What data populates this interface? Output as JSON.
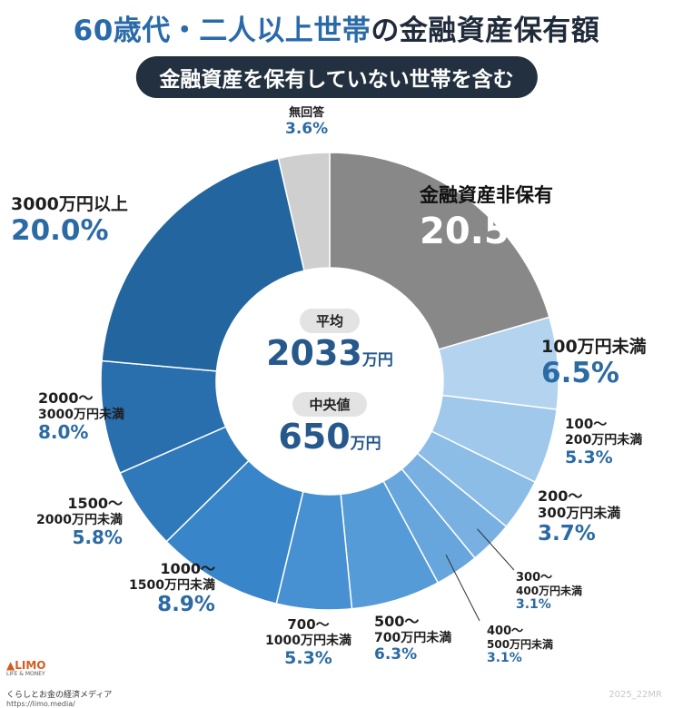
{
  "header": {
    "title_part1": "60歳代・二人以上世帯",
    "title_part2": "の金融資産保有額",
    "subtitle": "金融資産を保有していない世帯を含む"
  },
  "center": {
    "mean_label": "平均",
    "mean_value": "2033",
    "mean_unit": "万円",
    "median_label": "中央値",
    "median_value": "650",
    "median_unit": "万円"
  },
  "chart_data": {
    "type": "pie",
    "donut": true,
    "unit": "%",
    "slices": [
      {
        "label": "金融資産非保有",
        "value": 20.5,
        "display": "20.5%",
        "color": "#888888"
      },
      {
        "label": "100万円未満",
        "value": 6.5,
        "display": "6.5%",
        "color": "#b3d3ee"
      },
      {
        "label": "100〜200万円未満",
        "value": 5.3,
        "display": "5.3%",
        "color": "#9fc8ea"
      },
      {
        "label": "200〜300万円未満",
        "value": 3.7,
        "display": "3.7%",
        "color": "#8cbde6"
      },
      {
        "label": "300〜400万円未満",
        "value": 3.1,
        "display": "3.1%",
        "color": "#78b1e1"
      },
      {
        "label": "400〜500万円未満",
        "value": 3.1,
        "display": "3.1%",
        "color": "#66a6dd"
      },
      {
        "label": "500〜700万円未満",
        "value": 6.3,
        "display": "6.3%",
        "color": "#559bd7"
      },
      {
        "label": "700〜1000万円未満",
        "value": 5.3,
        "display": "5.3%",
        "color": "#4790d1"
      },
      {
        "label": "1000〜1500万円未満",
        "value": 8.9,
        "display": "8.9%",
        "color": "#3985c9"
      },
      {
        "label": "1500〜2000万円未満",
        "value": 5.8,
        "display": "5.8%",
        "color": "#2f79bb"
      },
      {
        "label": "2000〜3000万円未満",
        "value": 8.0,
        "display": "8.0%",
        "color": "#296ead"
      },
      {
        "label": "3000万円以上",
        "value": 20.0,
        "display": "20.0%",
        "color": "#23659f"
      },
      {
        "label": "無回答",
        "value": 3.6,
        "display": "3.6%",
        "color": "#cfcfcf"
      }
    ]
  },
  "labels": {
    "s0": {
      "cat": "金融資産非保有",
      "val": "20.5%"
    },
    "s1": {
      "cat": "100万円未満",
      "val": "6.5%"
    },
    "s2": {
      "cat1": "100〜",
      "cat2": "200万円未満",
      "val": "5.3%"
    },
    "s3": {
      "cat1": "200〜",
      "cat2": "300万円未満",
      "val": "3.7%"
    },
    "s4": {
      "cat1": "300〜",
      "cat2": "400万円未満",
      "val": "3.1%"
    },
    "s5": {
      "cat1": "400〜",
      "cat2": "500万円未満",
      "val": "3.1%"
    },
    "s6": {
      "cat1": "500〜",
      "cat2": "700万円未満",
      "val": "6.3%"
    },
    "s7": {
      "cat1": "700〜",
      "cat2": "1000万円未満",
      "val": "5.3%"
    },
    "s8": {
      "cat1": "1000〜",
      "cat2": "1500万円未満",
      "val": "8.9%"
    },
    "s9": {
      "cat1": "1500〜",
      "cat2": "2000万円未満",
      "val": "5.8%"
    },
    "s10": {
      "cat1": "2000〜",
      "cat2": "3000万円未満",
      "val": "8.0%"
    },
    "s11": {
      "cat": "3000万円以上",
      "val": "20.0%"
    },
    "s12": {
      "cat": "無回答",
      "val": "3.6%"
    }
  },
  "footer": {
    "logo": "LIMO",
    "logo_tag": "LIFE & MONEY",
    "media": "くらしとお金の経済メディア",
    "url": "https://limo.media/",
    "code": "2025_22MR"
  }
}
